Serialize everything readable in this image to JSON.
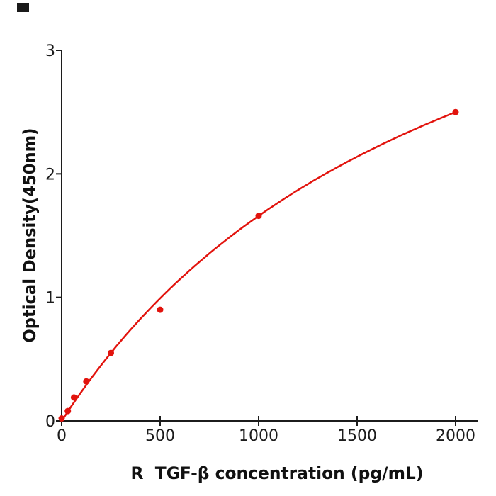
{
  "figure": {
    "background": "#ffffff",
    "corner_mark_color": "#1a1a1a"
  },
  "chart_data": {
    "type": "scatter",
    "title": "",
    "xlabel": "R  TGF-β concentration (pg/mL)",
    "ylabel": "Optical Density(450nm)",
    "x": [
      0,
      31.2,
      62.5,
      125,
      250,
      500,
      1000,
      2000
    ],
    "y": [
      0.02,
      0.08,
      0.19,
      0.32,
      0.55,
      0.9,
      1.66,
      2.5
    ],
    "fit_curve": {
      "model": "saturation",
      "vmax": 5.06,
      "k": 2049,
      "x_start": 0,
      "x_end": 2000
    },
    "xlim": [
      0,
      2115
    ],
    "ylim": [
      0,
      3
    ],
    "xticks": [
      0,
      500,
      1000,
      1500,
      2000
    ],
    "yticks": [
      0,
      1,
      2,
      3
    ],
    "grid": false,
    "legend": null,
    "marker_color": "#e2130d",
    "line_color": "#e2130d",
    "axis_color": "#1c1c1c"
  }
}
